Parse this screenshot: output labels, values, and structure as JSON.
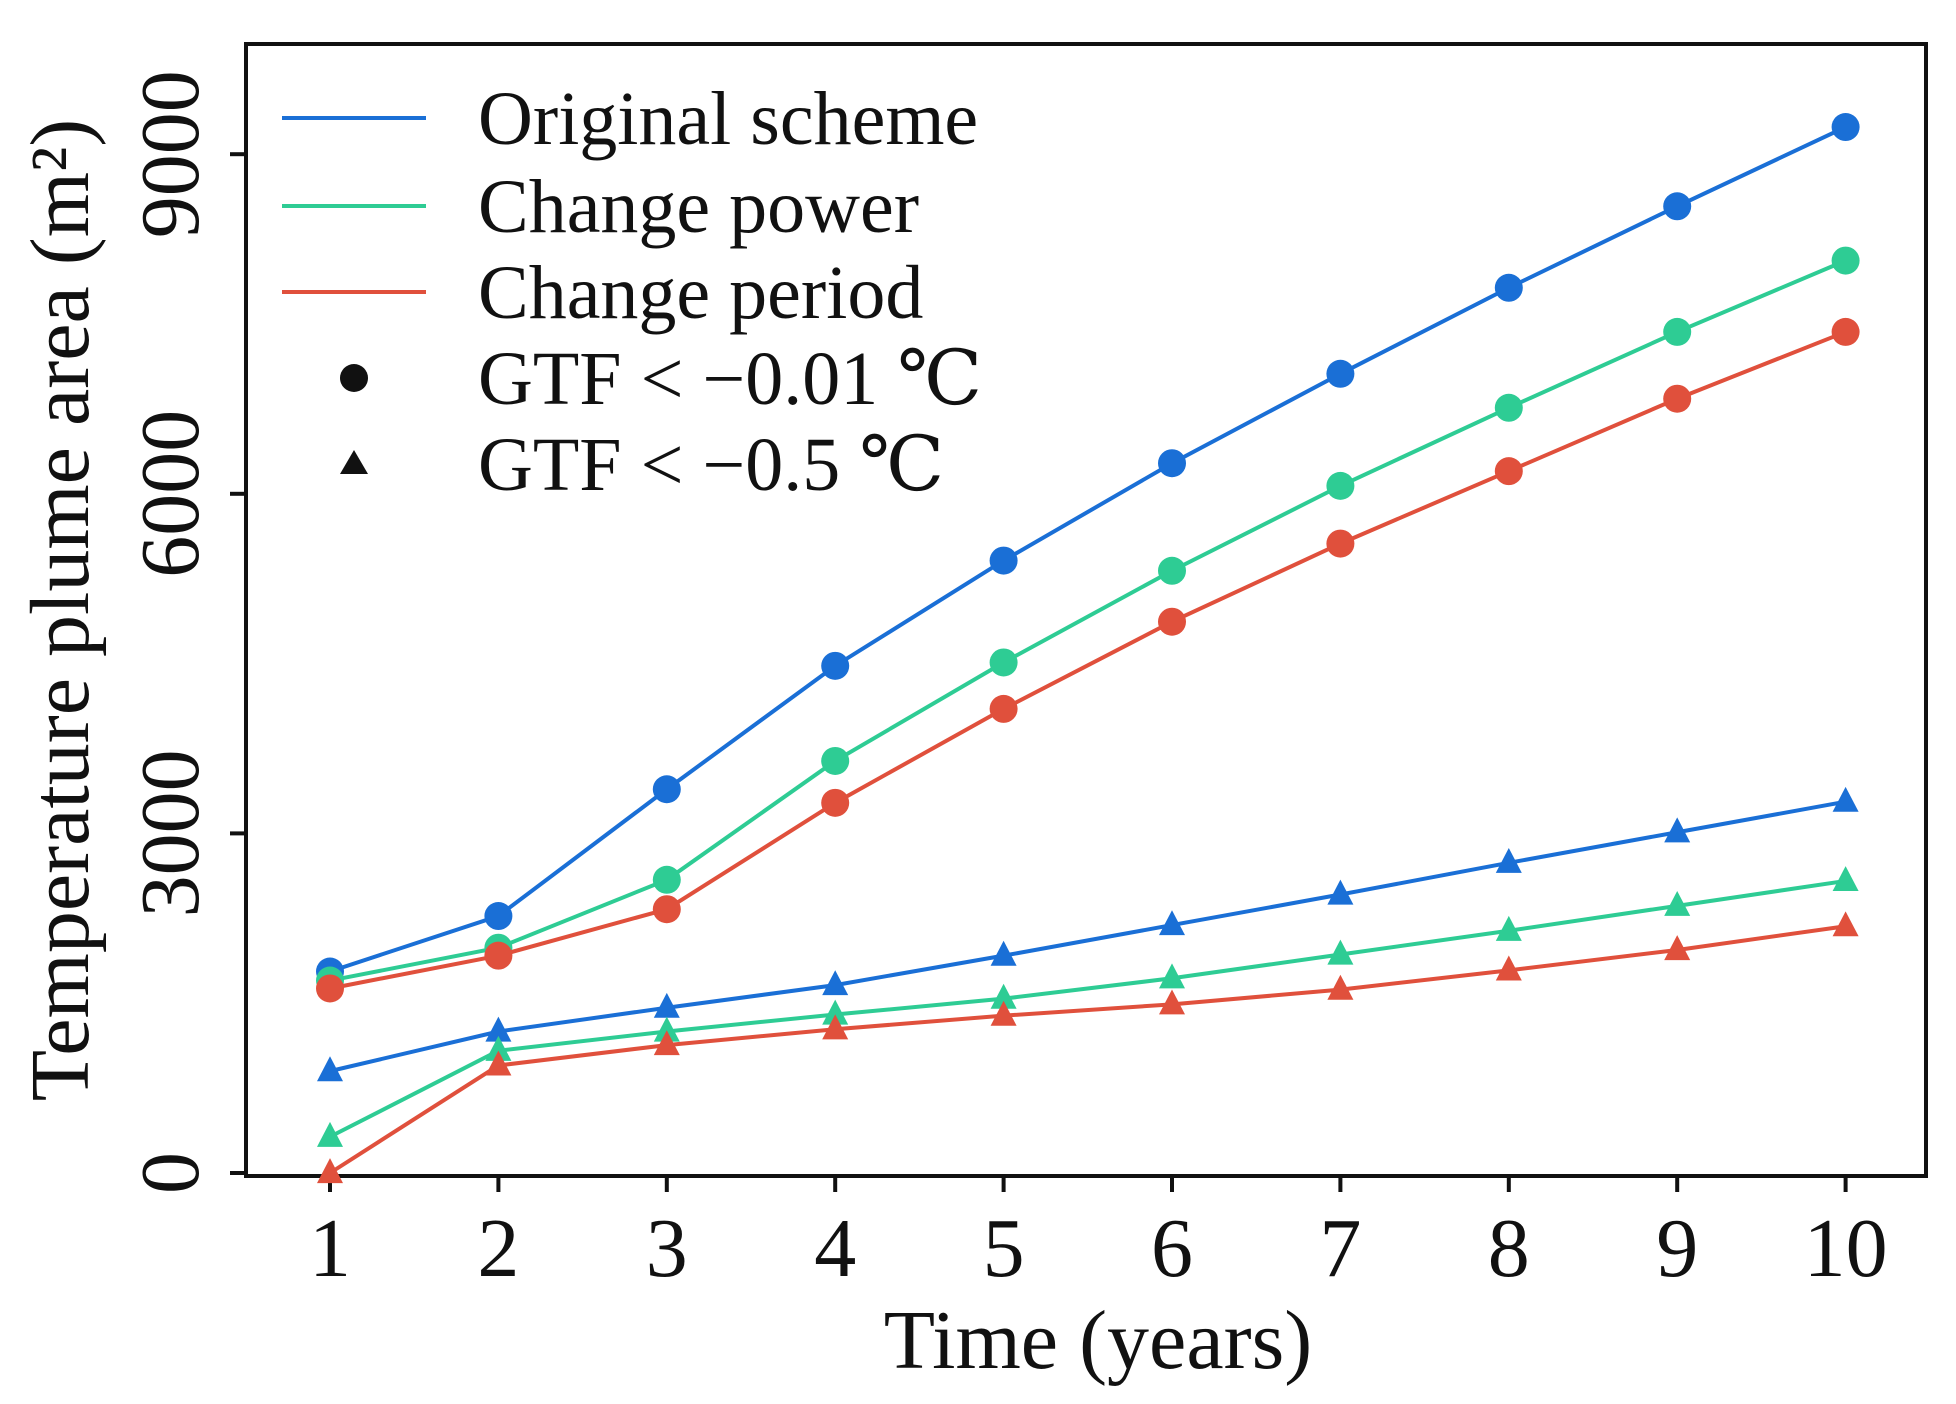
{
  "chart_data": {
    "type": "line",
    "title": "",
    "xlabel": "Time (years)",
    "ylabel": "Temperature plume area (m²)",
    "xlim": [
      0.5,
      10.5
    ],
    "ylim": [
      0,
      10000
    ],
    "x": [
      1,
      2,
      3,
      4,
      5,
      6,
      7,
      8,
      9,
      10
    ],
    "xticks": [
      "1",
      "2",
      "3",
      "4",
      "5",
      "6",
      "7",
      "8",
      "9",
      "10"
    ],
    "yticks": [
      "0",
      "3000",
      "6000",
      "9000"
    ],
    "ytick_values": [
      0,
      3000,
      6000,
      9000
    ],
    "grid": false,
    "legend_position": "top-left",
    "legend": {
      "lines": [
        {
          "label": "Original scheme",
          "color": "#1a6fd6"
        },
        {
          "label": "Change power",
          "color": "#2ecc94"
        },
        {
          "label": "Change period",
          "color": "#e0503c"
        }
      ],
      "markers": [
        {
          "label": "GTF < −0.01 ℃",
          "marker": "circle"
        },
        {
          "label": "GTF < −0.5 ℃",
          "marker": "triangle"
        }
      ]
    },
    "series": [
      {
        "name": "Original scheme, GTF < −0.01 ℃",
        "color": "#1a6fd6",
        "marker": "circle",
        "values": [
          1780,
          2270,
          3390,
          4480,
          5410,
          6270,
          7060,
          7820,
          8540,
          9240
        ]
      },
      {
        "name": "Change power, GTF < −0.01 ℃",
        "color": "#2ecc94",
        "marker": "circle",
        "values": [
          1700,
          1990,
          2590,
          3640,
          4510,
          5320,
          6070,
          6760,
          7430,
          8060
        ]
      },
      {
        "name": "Change period, GTF < −0.01 ℃",
        "color": "#e0503c",
        "marker": "circle",
        "values": [
          1630,
          1920,
          2330,
          3270,
          4100,
          4870,
          5560,
          6200,
          6840,
          7430
        ]
      },
      {
        "name": "Original scheme, GTF < −0.5 ℃",
        "color": "#1a6fd6",
        "marker": "triangle",
        "values": [
          900,
          1250,
          1460,
          1660,
          1920,
          2190,
          2460,
          2740,
          3010,
          3280
        ]
      },
      {
        "name": "Change power, GTF < −0.5 ℃",
        "color": "#2ecc94",
        "marker": "triangle",
        "values": [
          320,
          1080,
          1250,
          1400,
          1540,
          1720,
          1930,
          2140,
          2360,
          2580
        ]
      },
      {
        "name": "Change period, GTF < −0.5 ℃",
        "color": "#e0503c",
        "marker": "triangle",
        "values": [
          0,
          950,
          1130,
          1270,
          1390,
          1490,
          1620,
          1790,
          1970,
          2180
        ]
      }
    ]
  }
}
